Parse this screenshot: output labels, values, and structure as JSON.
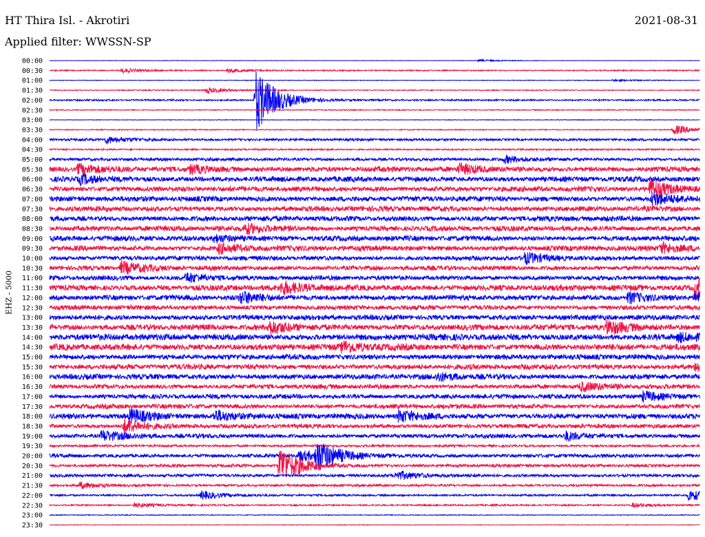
{
  "header": {
    "station": "HT Thira Isl. - Akrotiri",
    "date": "2021-08-31",
    "filter_label": "Applied filter: WWSSN-SP"
  },
  "channel_label": "EHZ - 5000",
  "colors": {
    "trace_a": "#0000ee",
    "trace_b": "#ee1144"
  },
  "chart_data": {
    "type": "line",
    "title": "HT Thira Isl. - Akrotiri",
    "subtitle": "Applied filter: WWSSN-SP",
    "ylabel": "EHZ - 5000",
    "xlabel": "",
    "grid": false,
    "legend": "none",
    "row_minutes": 30,
    "row_labels": [
      "00:00",
      "00:30",
      "01:00",
      "01:30",
      "02:00",
      "02:30",
      "03:00",
      "03:30",
      "04:00",
      "04:30",
      "05:00",
      "05:30",
      "06:00",
      "06:30",
      "07:00",
      "07:30",
      "08:00",
      "08:30",
      "09:00",
      "09:30",
      "10:00",
      "10:30",
      "11:00",
      "11:30",
      "12:00",
      "12:30",
      "13:00",
      "13:30",
      "14:00",
      "14:30",
      "15:00",
      "15:30",
      "16:00",
      "16:30",
      "17:00",
      "17:30",
      "18:00",
      "18:30",
      "19:00",
      "19:30",
      "20:00",
      "20:30",
      "21:00",
      "21:30",
      "22:00",
      "22:30",
      "23:00",
      "23:30"
    ],
    "noise_level": [
      0.2,
      0.6,
      0.3,
      0.5,
      0.8,
      0.5,
      0.3,
      0.5,
      1.2,
      0.8,
      1.5,
      2.5,
      2.5,
      2.5,
      2.5,
      2.5,
      2.5,
      2.5,
      2.5,
      2.5,
      2.2,
      2.2,
      2.2,
      2.8,
      2.5,
      2.2,
      2.5,
      2.8,
      3.0,
      3.0,
      2.5,
      2.5,
      2.5,
      2.2,
      2.2,
      2.2,
      2.5,
      2.0,
      2.0,
      1.2,
      1.8,
      1.5,
      1.5,
      1.2,
      1.0,
      0.8,
      0.4,
      0.3
    ],
    "events": [
      {
        "row": 0,
        "minute": 19.8,
        "amp": 1.5
      },
      {
        "row": 1,
        "minute": 3.3,
        "amp": 3
      },
      {
        "row": 1,
        "minute": 8.2,
        "amp": 3
      },
      {
        "row": 2,
        "minute": 26.0,
        "amp": 1.5
      },
      {
        "row": 3,
        "minute": 7.2,
        "amp": 4
      },
      {
        "row": 4,
        "minute": 9.5,
        "amp": 48
      },
      {
        "row": 7,
        "minute": 28.8,
        "amp": 7
      },
      {
        "row": 8,
        "minute": 2.6,
        "amp": 5
      },
      {
        "row": 10,
        "minute": 21.0,
        "amp": 5
      },
      {
        "row": 11,
        "minute": 1.3,
        "amp": 7
      },
      {
        "row": 11,
        "minute": 6.5,
        "amp": 6
      },
      {
        "row": 11,
        "minute": 18.9,
        "amp": 7
      },
      {
        "row": 12,
        "minute": 1.4,
        "amp": 6
      },
      {
        "row": 13,
        "minute": 27.7,
        "amp": 14
      },
      {
        "row": 14,
        "minute": 27.8,
        "amp": 10
      },
      {
        "row": 17,
        "minute": 9.0,
        "amp": 7
      },
      {
        "row": 18,
        "minute": 7.6,
        "amp": 5
      },
      {
        "row": 19,
        "minute": 7.8,
        "amp": 7
      },
      {
        "row": 19,
        "minute": 28.2,
        "amp": 7
      },
      {
        "row": 20,
        "minute": 21.9,
        "amp": 7
      },
      {
        "row": 21,
        "minute": 3.3,
        "amp": 9
      },
      {
        "row": 22,
        "minute": 6.3,
        "amp": 7
      },
      {
        "row": 23,
        "minute": 10.7,
        "amp": 8
      },
      {
        "row": 23,
        "minute": 29.8,
        "amp": 16
      },
      {
        "row": 24,
        "minute": 8.8,
        "amp": 8
      },
      {
        "row": 24,
        "minute": 26.7,
        "amp": 8
      },
      {
        "row": 24,
        "minute": 29.8,
        "amp": 9
      },
      {
        "row": 27,
        "minute": 10.1,
        "amp": 9
      },
      {
        "row": 27,
        "minute": 25.7,
        "amp": 10
      },
      {
        "row": 28,
        "minute": 29.0,
        "amp": 6
      },
      {
        "row": 29,
        "minute": 13.5,
        "amp": 7
      },
      {
        "row": 31,
        "minute": 29.8,
        "amp": 7
      },
      {
        "row": 32,
        "minute": 17.9,
        "amp": 5
      },
      {
        "row": 33,
        "minute": 24.5,
        "amp": 6
      },
      {
        "row": 34,
        "minute": 27.4,
        "amp": 7
      },
      {
        "row": 36,
        "minute": 3.7,
        "amp": 10
      },
      {
        "row": 36,
        "minute": 7.6,
        "amp": 8
      },
      {
        "row": 36,
        "minute": 16.1,
        "amp": 8
      },
      {
        "row": 37,
        "minute": 3.4,
        "amp": 11
      },
      {
        "row": 38,
        "minute": 2.4,
        "amp": 8
      },
      {
        "row": 38,
        "minute": 23.8,
        "amp": 6
      },
      {
        "row": 40,
        "minute": 11.5,
        "amp": 8
      },
      {
        "row": 40,
        "minute": 12.3,
        "amp": 22
      },
      {
        "row": 41,
        "minute": 10.6,
        "amp": 28
      },
      {
        "row": 42,
        "minute": 16.0,
        "amp": 6
      },
      {
        "row": 43,
        "minute": 1.4,
        "amp": 4
      },
      {
        "row": 44,
        "minute": 7.0,
        "amp": 6
      },
      {
        "row": 44,
        "minute": 29.5,
        "amp": 8
      },
      {
        "row": 45,
        "minute": 3.9,
        "amp": 3
      },
      {
        "row": 45,
        "minute": 26.9,
        "amp": 3
      }
    ]
  }
}
